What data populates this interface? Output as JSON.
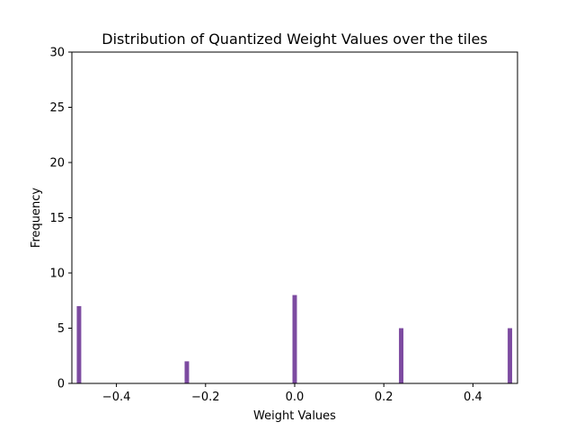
{
  "chart_data": {
    "type": "bar",
    "title": "Distribution of Quantized Weight Values over the tiles",
    "xlabel": "Weight Values",
    "ylabel": "Frequency",
    "xlim": [
      -0.5,
      0.5
    ],
    "ylim": [
      0,
      30
    ],
    "xticks": [
      -0.4,
      -0.2,
      0.0,
      0.2,
      0.4
    ],
    "xtick_labels": [
      "−0.4",
      "−0.2",
      "0.0",
      "0.2",
      "0.4"
    ],
    "yticks": [
      0,
      5,
      10,
      15,
      20,
      25,
      30
    ],
    "ytick_labels": [
      "0",
      "5",
      "10",
      "15",
      "20",
      "25",
      "30"
    ],
    "grid": false,
    "series": [
      {
        "color": "#7d4ba1",
        "bar_width": 0.01,
        "x": [
          -0.484,
          -0.242,
          0.0,
          0.239,
          0.483
        ],
        "values": [
          7,
          2,
          8,
          5,
          5
        ]
      }
    ]
  }
}
